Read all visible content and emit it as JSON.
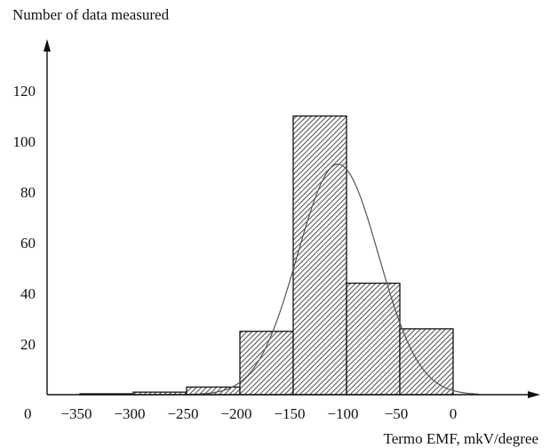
{
  "chart_data": {
    "type": "bar",
    "ylabel": "Number of data measured",
    "xlabel": "Termo EMF, mkV/degree",
    "origin_label": "0",
    "x_ticks": [
      "-350",
      "-300",
      "-250",
      "-200",
      "-150",
      "-100",
      "-50",
      "0"
    ],
    "x_tick_values": [
      -350,
      -300,
      -250,
      -200,
      -150,
      -100,
      -50,
      0
    ],
    "y_ticks": [
      "20",
      "40",
      "60",
      "80",
      "100",
      "120"
    ],
    "y_tick_values": [
      20,
      40,
      60,
      80,
      100,
      120
    ],
    "xlim": [
      -390,
      80
    ],
    "ylim": [
      0,
      140
    ],
    "bins": [
      {
        "x0": -350,
        "x1": -300,
        "value": 0.3
      },
      {
        "x0": -300,
        "x1": -250,
        "value": 1
      },
      {
        "x0": -250,
        "x1": -200,
        "value": 3
      },
      {
        "x0": -200,
        "x1": -150,
        "value": 25
      },
      {
        "x0": -150,
        "x1": -100,
        "value": 110
      },
      {
        "x0": -100,
        "x1": -50,
        "value": 44
      },
      {
        "x0": -50,
        "x1": 0,
        "value": 26
      }
    ],
    "fit_curve": {
      "type": "normal",
      "mean": -108,
      "peak": 91,
      "sigma": 38,
      "x_range": [
        -250,
        25
      ]
    },
    "fill": "hatched",
    "grid": false,
    "legend": false,
    "colors": {
      "axis": "#111111",
      "bar_stroke": "#111111",
      "hatch": "#222222",
      "curve": "#555555"
    }
  }
}
